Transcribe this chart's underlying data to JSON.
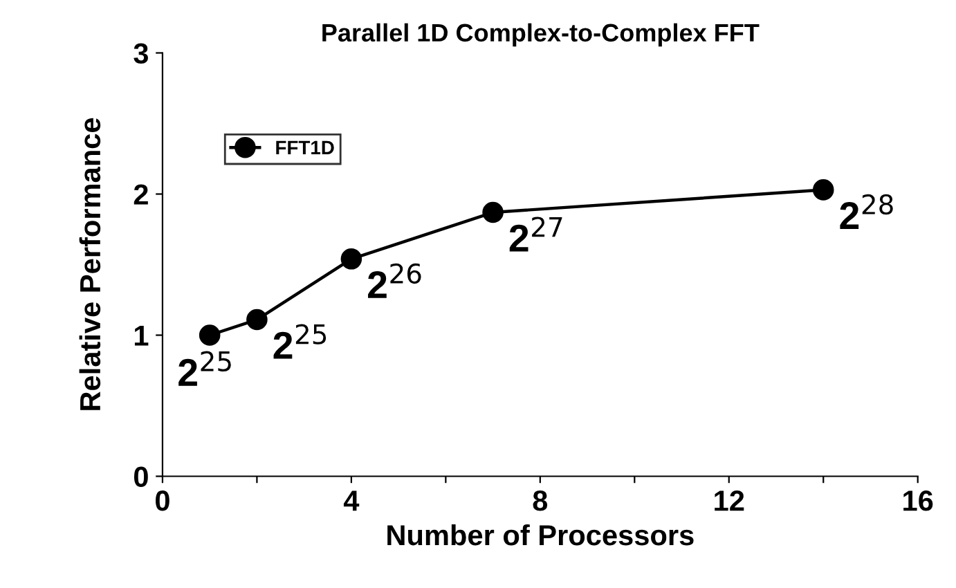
{
  "chart_data": {
    "type": "line",
    "title": "Parallel 1D Complex-to-Complex FFT",
    "xlabel": "Number of Processors",
    "ylabel": "Relative Performance",
    "series": [
      {
        "name": "FFT1D",
        "color": "#000000",
        "x": [
          1,
          2,
          4,
          7,
          14
        ],
        "values": [
          1.0,
          1.11,
          1.54,
          1.87,
          2.03
        ]
      }
    ],
    "xlim": [
      0,
      16
    ],
    "xticks": [
      0,
      {
        "value": 2,
        "label": null
      },
      4,
      {
        "value": 6,
        "label": null
      },
      8,
      {
        "value": 10,
        "label": null
      },
      12,
      {
        "value": 14,
        "label": null
      },
      16
    ],
    "ylim": [
      0,
      3
    ],
    "yticks": [
      0,
      1,
      2,
      3
    ],
    "marker": "circle",
    "line_style": "solid",
    "grid": false,
    "legend": "top left",
    "annotations": [
      {
        "text": "2$^{25}$",
        "x": 1,
        "y": 1.0
      },
      {
        "text": "2$^{25}$",
        "x": 2,
        "y": 1.11
      },
      {
        "text": "2$^{26}$",
        "x": 4,
        "y": 1.54
      },
      {
        "text": "2$^{27}$",
        "x": 7,
        "y": 1.87
      },
      {
        "text": "2$^{28}$",
        "x": 14,
        "y": 2.03
      }
    ]
  }
}
